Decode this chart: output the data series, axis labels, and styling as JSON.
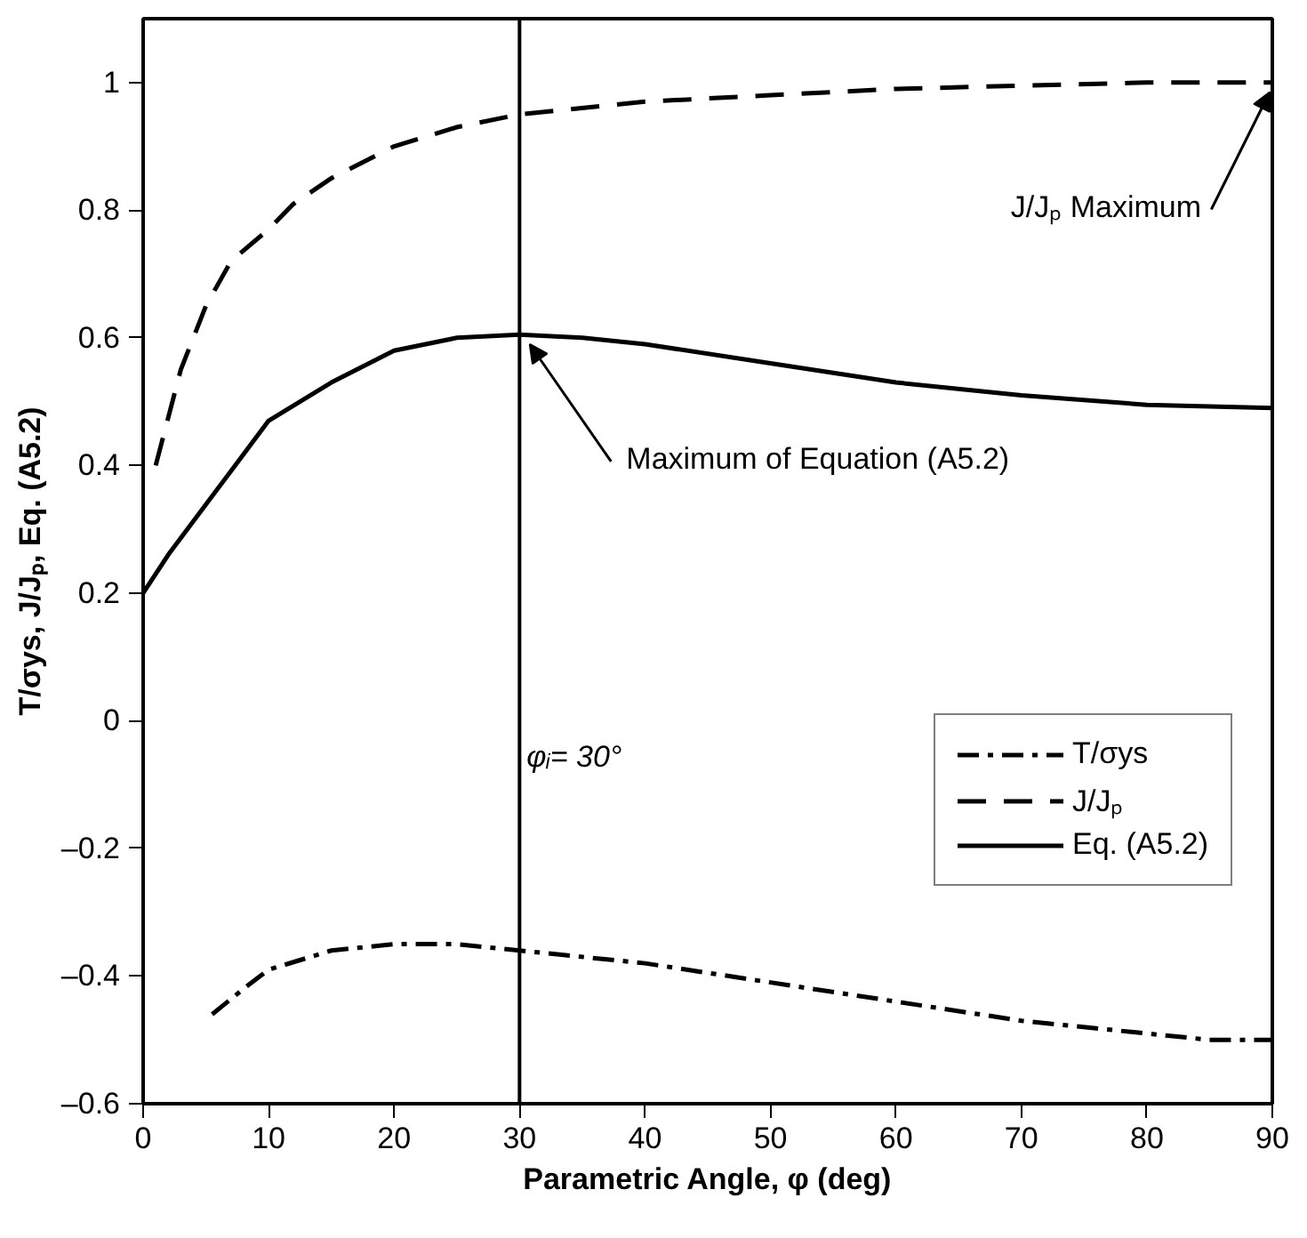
{
  "chart_data": {
    "type": "line",
    "xlabel": "Parametric Angle, φ (deg)",
    "ylabel": "T/σys, J/Jₚ, Eq. (A5.2)",
    "xlim": [
      0,
      90
    ],
    "ylim": [
      -0.6,
      1.1
    ],
    "xticks": [
      0,
      10,
      20,
      30,
      40,
      50,
      60,
      70,
      80,
      90
    ],
    "yticks": [
      {
        "value": -0.6,
        "label": "–0.6"
      },
      {
        "value": -0.4,
        "label": "–0.4"
      },
      {
        "value": -0.2,
        "label": "–0.2"
      },
      0,
      0.2,
      0.4,
      0.6,
      0.8,
      1
    ],
    "grid": false,
    "legend": "bottom right",
    "marker": "none",
    "series": [
      {
        "name": "T/σys",
        "color": "#000000",
        "line_style": "dashdot",
        "x": [
          5.5,
          8,
          10,
          15,
          20,
          25,
          30,
          40,
          50,
          60,
          70,
          80,
          85,
          90
        ],
        "values": [
          -0.46,
          -0.42,
          -0.39,
          -0.36,
          -0.35,
          -0.35,
          -0.36,
          -0.38,
          -0.41,
          -0.44,
          -0.47,
          -0.49,
          -0.5,
          -0.5
        ]
      },
      {
        "name": "J/Jₚ",
        "color": "#000000",
        "line_style": "dashed",
        "x": [
          1,
          3,
          5,
          7,
          10,
          12,
          15,
          20,
          25,
          30,
          40,
          50,
          60,
          70,
          80,
          90
        ],
        "values": [
          0.4,
          0.55,
          0.65,
          0.72,
          0.77,
          0.81,
          0.85,
          0.9,
          0.93,
          0.95,
          0.97,
          0.98,
          0.99,
          0.995,
          1.0,
          1.0
        ]
      },
      {
        "name": "Eq. (A5.2)",
        "color": "#000000",
        "line_style": "solid",
        "x": [
          0,
          2,
          10,
          15,
          20,
          25,
          30,
          35,
          40,
          50,
          60,
          70,
          80,
          90
        ],
        "values": [
          0.2,
          0.26,
          0.47,
          0.53,
          0.58,
          0.6,
          0.605,
          0.6,
          0.59,
          0.56,
          0.53,
          0.51,
          0.495,
          0.49
        ]
      }
    ],
    "ref_lines": [
      {
        "axis": "x",
        "value": 30,
        "label": "φᵢ= 30°"
      }
    ],
    "annotations": [
      {
        "text": "Maximum of Equation (A5.2)",
        "x": 30,
        "y": 0.605
      },
      {
        "text": "J/Jₚ Maximum",
        "x": 90,
        "y": 1.0
      }
    ]
  }
}
